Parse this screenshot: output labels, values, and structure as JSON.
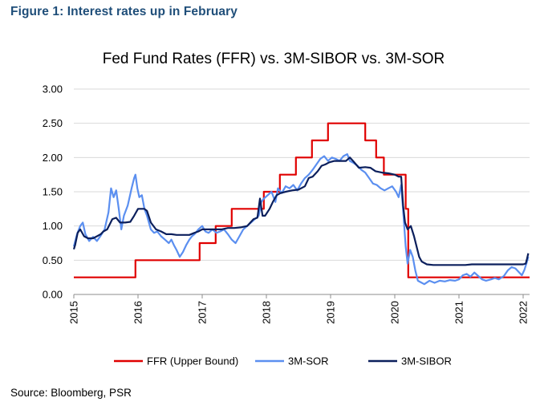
{
  "figure_heading": "Figure 1: Interest rates up in February",
  "source_note": "Source: Bloomberg, PSR",
  "colors": {
    "heading": "#1f4e79",
    "ffr": "#e00000",
    "sor": "#5b8ff0",
    "sibor": "#0b1f5c",
    "grid": "#d9d9d9"
  },
  "chart_data": {
    "type": "line",
    "title": "Fed Fund Rates (FFR) vs. 3M-SIBOR vs. 3M-SOR",
    "xlabel": "",
    "ylabel": "",
    "xlim": [
      2015.0,
      2022.1
    ],
    "ylim": [
      0,
      3.0
    ],
    "x_ticks": [
      "2015",
      "2016",
      "2017",
      "2018",
      "2019",
      "2020",
      "2021",
      "2022"
    ],
    "y_ticks": [
      "0.00",
      "0.50",
      "1.00",
      "1.50",
      "2.00",
      "2.50",
      "3.00"
    ],
    "grid": "horizontal",
    "legend_position": "bottom",
    "series": [
      {
        "name": "FFR (Upper Bound)",
        "color": "#e00000",
        "step": true,
        "points": [
          [
            2015.0,
            0.25
          ],
          [
            2015.96,
            0.25
          ],
          [
            2015.96,
            0.5
          ],
          [
            2016.96,
            0.5
          ],
          [
            2016.96,
            0.75
          ],
          [
            2017.21,
            0.75
          ],
          [
            2017.21,
            1.0
          ],
          [
            2017.46,
            1.0
          ],
          [
            2017.46,
            1.25
          ],
          [
            2017.96,
            1.25
          ],
          [
            2017.96,
            1.5
          ],
          [
            2018.21,
            1.5
          ],
          [
            2018.21,
            1.75
          ],
          [
            2018.46,
            1.75
          ],
          [
            2018.46,
            2.0
          ],
          [
            2018.71,
            2.0
          ],
          [
            2018.71,
            2.25
          ],
          [
            2018.96,
            2.25
          ],
          [
            2018.96,
            2.5
          ],
          [
            2019.54,
            2.5
          ],
          [
            2019.54,
            2.25
          ],
          [
            2019.71,
            2.25
          ],
          [
            2019.71,
            2.0
          ],
          [
            2019.83,
            2.0
          ],
          [
            2019.83,
            1.75
          ],
          [
            2020.17,
            1.75
          ],
          [
            2020.17,
            1.25
          ],
          [
            2020.21,
            1.25
          ],
          [
            2020.21,
            0.25
          ],
          [
            2022.1,
            0.25
          ]
        ]
      },
      {
        "name": "3M-SOR",
        "color": "#5b8ff0",
        "step": false,
        "points": [
          [
            2015.0,
            0.7
          ],
          [
            2015.05,
            0.88
          ],
          [
            2015.1,
            1.0
          ],
          [
            2015.14,
            1.05
          ],
          [
            2015.18,
            0.88
          ],
          [
            2015.24,
            0.78
          ],
          [
            2015.3,
            0.84
          ],
          [
            2015.36,
            0.78
          ],
          [
            2015.42,
            0.86
          ],
          [
            2015.48,
            0.95
          ],
          [
            2015.54,
            1.2
          ],
          [
            2015.58,
            1.55
          ],
          [
            2015.62,
            1.42
          ],
          [
            2015.66,
            1.52
          ],
          [
            2015.7,
            1.25
          ],
          [
            2015.74,
            0.95
          ],
          [
            2015.78,
            1.15
          ],
          [
            2015.84,
            1.3
          ],
          [
            2015.9,
            1.55
          ],
          [
            2015.94,
            1.7
          ],
          [
            2015.96,
            1.75
          ],
          [
            2015.99,
            1.55
          ],
          [
            2016.02,
            1.42
          ],
          [
            2016.06,
            1.45
          ],
          [
            2016.1,
            1.25
          ],
          [
            2016.14,
            1.15
          ],
          [
            2016.2,
            0.95
          ],
          [
            2016.25,
            0.9
          ],
          [
            2016.3,
            0.92
          ],
          [
            2016.36,
            0.85
          ],
          [
            2016.42,
            0.8
          ],
          [
            2016.48,
            0.75
          ],
          [
            2016.52,
            0.8
          ],
          [
            2016.56,
            0.72
          ],
          [
            2016.6,
            0.65
          ],
          [
            2016.65,
            0.55
          ],
          [
            2016.7,
            0.62
          ],
          [
            2016.75,
            0.72
          ],
          [
            2016.8,
            0.8
          ],
          [
            2016.84,
            0.85
          ],
          [
            2016.88,
            0.88
          ],
          [
            2016.94,
            0.95
          ],
          [
            2017.0,
            1.0
          ],
          [
            2017.05,
            0.92
          ],
          [
            2017.1,
            0.9
          ],
          [
            2017.16,
            0.95
          ],
          [
            2017.22,
            0.9
          ],
          [
            2017.28,
            0.92
          ],
          [
            2017.34,
            0.95
          ],
          [
            2017.4,
            0.88
          ],
          [
            2017.46,
            0.8
          ],
          [
            2017.52,
            0.75
          ],
          [
            2017.58,
            0.85
          ],
          [
            2017.64,
            0.95
          ],
          [
            2017.7,
            1.0
          ],
          [
            2017.76,
            1.05
          ],
          [
            2017.82,
            1.1
          ],
          [
            2017.88,
            1.15
          ],
          [
            2017.92,
            1.35
          ],
          [
            2017.96,
            1.4
          ],
          [
            2018.02,
            1.45
          ],
          [
            2018.08,
            1.5
          ],
          [
            2018.14,
            1.35
          ],
          [
            2018.18,
            1.55
          ],
          [
            2018.24,
            1.48
          ],
          [
            2018.3,
            1.58
          ],
          [
            2018.36,
            1.55
          ],
          [
            2018.42,
            1.6
          ],
          [
            2018.48,
            1.52
          ],
          [
            2018.54,
            1.62
          ],
          [
            2018.6,
            1.7
          ],
          [
            2018.66,
            1.75
          ],
          [
            2018.72,
            1.82
          ],
          [
            2018.78,
            1.9
          ],
          [
            2018.84,
            1.98
          ],
          [
            2018.9,
            2.02
          ],
          [
            2018.96,
            1.95
          ],
          [
            2019.02,
            2.0
          ],
          [
            2019.08,
            1.98
          ],
          [
            2019.14,
            1.95
          ],
          [
            2019.2,
            2.02
          ],
          [
            2019.26,
            2.05
          ],
          [
            2019.3,
            1.95
          ],
          [
            2019.36,
            1.92
          ],
          [
            2019.42,
            1.88
          ],
          [
            2019.48,
            1.82
          ],
          [
            2019.54,
            1.78
          ],
          [
            2019.6,
            1.7
          ],
          [
            2019.66,
            1.62
          ],
          [
            2019.72,
            1.6
          ],
          [
            2019.78,
            1.55
          ],
          [
            2019.84,
            1.52
          ],
          [
            2019.9,
            1.55
          ],
          [
            2019.96,
            1.58
          ],
          [
            2020.02,
            1.5
          ],
          [
            2020.06,
            1.42
          ],
          [
            2020.1,
            1.6
          ],
          [
            2020.14,
            1.1
          ],
          [
            2020.17,
            0.7
          ],
          [
            2020.2,
            0.45
          ],
          [
            2020.24,
            0.65
          ],
          [
            2020.28,
            0.55
          ],
          [
            2020.32,
            0.35
          ],
          [
            2020.36,
            0.2
          ],
          [
            2020.4,
            0.18
          ],
          [
            2020.46,
            0.15
          ],
          [
            2020.54,
            0.2
          ],
          [
            2020.62,
            0.17
          ],
          [
            2020.7,
            0.2
          ],
          [
            2020.78,
            0.19
          ],
          [
            2020.86,
            0.21
          ],
          [
            2020.94,
            0.2
          ],
          [
            2021.0,
            0.22
          ],
          [
            2021.06,
            0.28
          ],
          [
            2021.12,
            0.3
          ],
          [
            2021.18,
            0.26
          ],
          [
            2021.24,
            0.32
          ],
          [
            2021.3,
            0.27
          ],
          [
            2021.36,
            0.22
          ],
          [
            2021.42,
            0.2
          ],
          [
            2021.5,
            0.22
          ],
          [
            2021.56,
            0.24
          ],
          [
            2021.62,
            0.22
          ],
          [
            2021.7,
            0.27
          ],
          [
            2021.76,
            0.35
          ],
          [
            2021.82,
            0.4
          ],
          [
            2021.88,
            0.38
          ],
          [
            2021.94,
            0.32
          ],
          [
            2021.98,
            0.28
          ],
          [
            2022.02,
            0.36
          ],
          [
            2022.06,
            0.48
          ],
          [
            2022.08,
            0.55
          ]
        ]
      },
      {
        "name": "3M-SIBOR",
        "color": "#0b1f5c",
        "step": false,
        "points": [
          [
            2015.0,
            0.66
          ],
          [
            2015.02,
            0.72
          ],
          [
            2015.06,
            0.9
          ],
          [
            2015.1,
            0.95
          ],
          [
            2015.16,
            0.85
          ],
          [
            2015.22,
            0.82
          ],
          [
            2015.3,
            0.82
          ],
          [
            2015.36,
            0.85
          ],
          [
            2015.42,
            0.88
          ],
          [
            2015.46,
            0.92
          ],
          [
            2015.52,
            0.95
          ],
          [
            2015.6,
            1.1
          ],
          [
            2015.66,
            1.12
          ],
          [
            2015.72,
            1.05
          ],
          [
            2015.8,
            1.05
          ],
          [
            2015.88,
            1.06
          ],
          [
            2015.94,
            1.15
          ],
          [
            2016.0,
            1.25
          ],
          [
            2016.1,
            1.25
          ],
          [
            2016.14,
            1.22
          ],
          [
            2016.2,
            1.05
          ],
          [
            2016.28,
            0.95
          ],
          [
            2016.36,
            0.92
          ],
          [
            2016.44,
            0.88
          ],
          [
            2016.52,
            0.88
          ],
          [
            2016.6,
            0.87
          ],
          [
            2016.7,
            0.87
          ],
          [
            2016.8,
            0.87
          ],
          [
            2016.88,
            0.9
          ],
          [
            2016.94,
            0.92
          ],
          [
            2017.0,
            0.95
          ],
          [
            2017.1,
            0.95
          ],
          [
            2017.2,
            0.95
          ],
          [
            2017.3,
            0.95
          ],
          [
            2017.4,
            0.97
          ],
          [
            2017.5,
            0.97
          ],
          [
            2017.6,
            0.98
          ],
          [
            2017.7,
            1.0
          ],
          [
            2017.8,
            1.1
          ],
          [
            2017.86,
            1.12
          ],
          [
            2017.9,
            1.4
          ],
          [
            2017.94,
            1.15
          ],
          [
            2017.98,
            1.15
          ],
          [
            2018.05,
            1.25
          ],
          [
            2018.1,
            1.35
          ],
          [
            2018.16,
            1.45
          ],
          [
            2018.22,
            1.48
          ],
          [
            2018.3,
            1.5
          ],
          [
            2018.4,
            1.52
          ],
          [
            2018.5,
            1.53
          ],
          [
            2018.6,
            1.58
          ],
          [
            2018.66,
            1.7
          ],
          [
            2018.72,
            1.72
          ],
          [
            2018.8,
            1.8
          ],
          [
            2018.86,
            1.88
          ],
          [
            2018.92,
            1.9
          ],
          [
            2018.98,
            1.93
          ],
          [
            2019.06,
            1.95
          ],
          [
            2019.16,
            1.95
          ],
          [
            2019.24,
            1.95
          ],
          [
            2019.3,
            2.0
          ],
          [
            2019.36,
            1.94
          ],
          [
            2019.44,
            1.85
          ],
          [
            2019.54,
            1.86
          ],
          [
            2019.62,
            1.85
          ],
          [
            2019.7,
            1.8
          ],
          [
            2019.8,
            1.78
          ],
          [
            2019.9,
            1.77
          ],
          [
            2020.0,
            1.75
          ],
          [
            2020.06,
            1.72
          ],
          [
            2020.1,
            1.72
          ],
          [
            2020.13,
            1.3
          ],
          [
            2020.16,
            1.05
          ],
          [
            2020.2,
            0.95
          ],
          [
            2020.25,
            1.0
          ],
          [
            2020.3,
            0.85
          ],
          [
            2020.34,
            0.7
          ],
          [
            2020.38,
            0.55
          ],
          [
            2020.42,
            0.48
          ],
          [
            2020.5,
            0.44
          ],
          [
            2020.6,
            0.43
          ],
          [
            2020.7,
            0.43
          ],
          [
            2020.8,
            0.43
          ],
          [
            2020.9,
            0.43
          ],
          [
            2021.0,
            0.43
          ],
          [
            2021.1,
            0.43
          ],
          [
            2021.2,
            0.44
          ],
          [
            2021.3,
            0.44
          ],
          [
            2021.4,
            0.44
          ],
          [
            2021.5,
            0.44
          ],
          [
            2021.6,
            0.44
          ],
          [
            2021.7,
            0.44
          ],
          [
            2021.8,
            0.44
          ],
          [
            2021.9,
            0.44
          ],
          [
            2022.0,
            0.44
          ],
          [
            2022.04,
            0.45
          ],
          [
            2022.06,
            0.52
          ],
          [
            2022.08,
            0.6
          ]
        ]
      }
    ]
  }
}
